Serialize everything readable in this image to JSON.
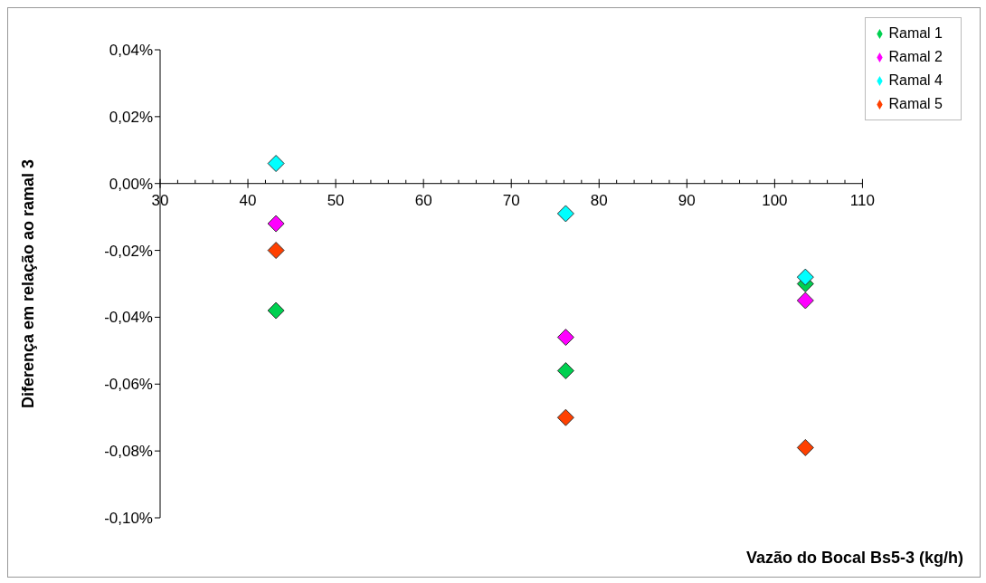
{
  "chart_data": {
    "type": "scatter",
    "xlabel": "Vazão do Bocal Bs5-3 (kg/h)",
    "ylabel": "Diferença em relação ao ramal 3",
    "xlim": [
      30,
      110
    ],
    "xticks": [
      30,
      {
        "value": 32,
        "label": null
      },
      {
        "value": 34,
        "label": null
      },
      {
        "value": 36,
        "label": null
      },
      {
        "value": 38,
        "label": null
      },
      40,
      {
        "value": 42,
        "label": null
      },
      {
        "value": 44,
        "label": null
      },
      {
        "value": 46,
        "label": null
      },
      {
        "value": 48,
        "label": null
      },
      50,
      {
        "value": 52,
        "label": null
      },
      {
        "value": 54,
        "label": null
      },
      {
        "value": 56,
        "label": null
      },
      {
        "value": 58,
        "label": null
      },
      60,
      {
        "value": 62,
        "label": null
      },
      {
        "value": 64,
        "label": null
      },
      {
        "value": 66,
        "label": null
      },
      {
        "value": 68,
        "label": null
      },
      70,
      {
        "value": 72,
        "label": null
      },
      {
        "value": 74,
        "label": null
      },
      {
        "value": 76,
        "label": null
      },
      {
        "value": 78,
        "label": null
      },
      80,
      {
        "value": 82,
        "label": null
      },
      {
        "value": 84,
        "label": null
      },
      {
        "value": 86,
        "label": null
      },
      {
        "value": 88,
        "label": null
      },
      90,
      {
        "value": 92,
        "label": null
      },
      {
        "value": 94,
        "label": null
      },
      {
        "value": 96,
        "label": null
      },
      {
        "value": 98,
        "label": null
      },
      100,
      {
        "value": 102,
        "label": null
      },
      {
        "value": 104,
        "label": null
      },
      {
        "value": 106,
        "label": null
      },
      {
        "value": 108,
        "label": null
      },
      110
    ],
    "ylim": [
      -0.1,
      0.04
    ],
    "yticks": [
      {
        "value": -0.1,
        "label": "-0,10%"
      },
      {
        "value": -0.08,
        "label": "-0,08%"
      },
      {
        "value": -0.06,
        "label": "-0,06%"
      },
      {
        "value": -0.04,
        "label": "-0,04%"
      },
      {
        "value": -0.02,
        "label": "-0,02%"
      },
      {
        "value": 0,
        "label": "0,00%"
      },
      {
        "value": 0.02,
        "label": "0,02%"
      },
      {
        "value": 0.04,
        "label": "0,04%"
      }
    ],
    "x": [
      43.2,
      76.2,
      103.5
    ],
    "series": [
      {
        "name": "Ramal 1",
        "color": "#00d050",
        "values": [
          -0.038,
          -0.056,
          -0.03
        ]
      },
      {
        "name": "Ramal 2",
        "color": "#ff00ff",
        "values": [
          -0.012,
          -0.046,
          -0.035
        ]
      },
      {
        "name": "Ramal 4",
        "color": "#00ffff",
        "values": [
          0.006,
          -0.009,
          -0.028
        ]
      },
      {
        "name": "Ramal 5",
        "color": "#ff4000",
        "values": [
          -0.02,
          -0.07,
          -0.079
        ]
      }
    ],
    "marker": "diamond",
    "grid": false,
    "legend": "top right"
  }
}
